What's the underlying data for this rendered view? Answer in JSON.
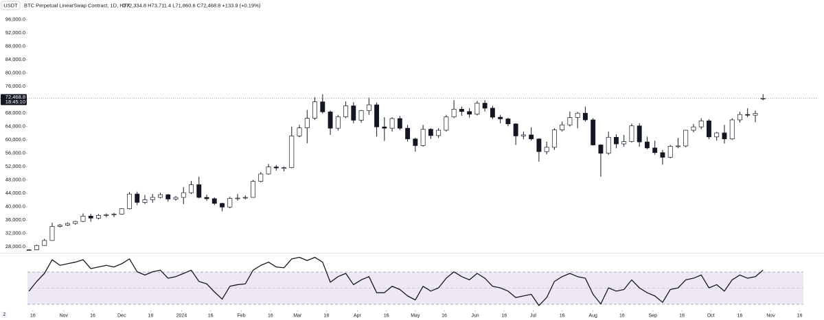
{
  "chart_data": {
    "type": "candlestick",
    "currency": "USDT",
    "title": "BTC Perpetual LinearSwap Contract, 1D, HTX",
    "legend_values": "O72,334.8 H73,711.4 L71,860.6 C72,468.8 +133.9 (+0.19%)",
    "x": [
      -2,
      2,
      6,
      10,
      14,
      18,
      22,
      26,
      30,
      34,
      38,
      42,
      46,
      50,
      54,
      58,
      62,
      66,
      70,
      74,
      78,
      82,
      86,
      90,
      94,
      98,
      102,
      106,
      110,
      114,
      118,
      122,
      126,
      130,
      134,
      138,
      142,
      146,
      150,
      154,
      158,
      162,
      166,
      170,
      174,
      178,
      182,
      186,
      190,
      194,
      198,
      202,
      206,
      210,
      214,
      218,
      222,
      226,
      230,
      234,
      238,
      242,
      246,
      250,
      254,
      258,
      262,
      266,
      270,
      274,
      278,
      282,
      286,
      290,
      294,
      298,
      302,
      306,
      310,
      314,
      318,
      322,
      326,
      330,
      334,
      338,
      342,
      346,
      350,
      354,
      358,
      362,
      366,
      370,
      374,
      378
    ],
    "open": [
      26900,
      27100,
      28400,
      29900,
      34100,
      34500,
      35000,
      35600,
      37200,
      36600,
      37400,
      37600,
      37800,
      39400,
      43800,
      41300,
      42100,
      42800,
      43600,
      42300,
      42800,
      44200,
      46600,
      42800,
      42400,
      41000,
      39900,
      42500,
      42600,
      42800,
      47600,
      49800,
      51900,
      51600,
      51700,
      61200,
      63600,
      66500,
      71400,
      68400,
      63500,
      66900,
      70200,
      65900,
      68800,
      70500,
      63900,
      63500,
      66400,
      63500,
      60300,
      58300,
      63200,
      61300,
      62900,
      66900,
      69200,
      68500,
      67700,
      71000,
      69500,
      66800,
      66300,
      64800,
      61200,
      61500,
      60300,
      56500,
      57800,
      63000,
      64500,
      66700,
      68000,
      66000,
      58500,
      56000,
      60800,
      58800,
      59500,
      64200,
      59400,
      57600,
      56200,
      54800,
      58100,
      58200,
      62900,
      63900,
      65700,
      60900,
      62100,
      60300,
      66000,
      67600,
      67400,
      72334.8
    ],
    "high": [
      27300,
      28600,
      30400,
      35200,
      34800,
      35300,
      35800,
      38000,
      37900,
      37800,
      38000,
      38200,
      39500,
      44400,
      44500,
      43500,
      43800,
      44200,
      43800,
      43200,
      45900,
      47700,
      49000,
      43600,
      42800,
      41200,
      43000,
      43800,
      43400,
      48000,
      50400,
      52800,
      52500,
      52000,
      64000,
      64500,
      69000,
      72800,
      73700,
      68800,
      67500,
      71500,
      71300,
      69000,
      72700,
      71200,
      66800,
      66800,
      67200,
      64500,
      60700,
      64500,
      63500,
      63500,
      67500,
      71900,
      70000,
      69500,
      71700,
      71900,
      70200,
      67500,
      66600,
      65000,
      62500,
      63800,
      60500,
      59500,
      63500,
      65500,
      68500,
      68400,
      70000,
      66500,
      58700,
      62500,
      61700,
      61500,
      64900,
      65000,
      61000,
      59800,
      57000,
      58500,
      60600,
      63000,
      64800,
      66500,
      66200,
      62400,
      64500,
      66500,
      68400,
      69500,
      68800,
      73711.4
    ],
    "low": [
      26800,
      27000,
      28300,
      29800,
      33800,
      34200,
      34600,
      35400,
      35500,
      36200,
      36800,
      36900,
      37600,
      39200,
      40500,
      40800,
      41200,
      42500,
      41500,
      41800,
      40800,
      43800,
      42500,
      41700,
      40500,
      38600,
      39500,
      41800,
      42200,
      42700,
      47300,
      49600,
      50800,
      50600,
      51500,
      60800,
      59000,
      66000,
      67900,
      61500,
      62800,
      66500,
      65000,
      65100,
      67500,
      61000,
      59700,
      62500,
      63000,
      59500,
      56500,
      58000,
      60300,
      60600,
      62500,
      66500,
      67200,
      66700,
      67300,
      68500,
      66200,
      65000,
      64100,
      58500,
      60200,
      59800,
      53500,
      55700,
      57000,
      62500,
      64000,
      63500,
      65500,
      58300,
      49000,
      55500,
      57500,
      58000,
      59200,
      58000,
      57200,
      55600,
      52600,
      54500,
      57500,
      57800,
      62300,
      63200,
      60200,
      59800,
      58900,
      60000,
      65200,
      66800,
      65300,
      71860.6
    ],
    "close": [
      27100,
      28400,
      29900,
      34100,
      34500,
      35000,
      35600,
      37200,
      36600,
      37400,
      37600,
      37800,
      39400,
      43800,
      41300,
      42100,
      42800,
      43600,
      42300,
      42800,
      44200,
      46600,
      42800,
      42400,
      41000,
      39900,
      42500,
      42600,
      42800,
      47600,
      49800,
      51900,
      51600,
      51700,
      61200,
      63600,
      66500,
      71400,
      68400,
      63500,
      66900,
      70200,
      65900,
      68800,
      70500,
      63900,
      63500,
      66400,
      63500,
      60300,
      58300,
      63200,
      61300,
      62900,
      66900,
      69200,
      68500,
      67700,
      71000,
      69500,
      66800,
      66300,
      64800,
      61200,
      61500,
      60300,
      56500,
      57800,
      63000,
      64500,
      66700,
      68000,
      66000,
      58500,
      56000,
      60800,
      58800,
      59500,
      64200,
      59400,
      57600,
      56200,
      54800,
      58100,
      58200,
      62900,
      63900,
      65700,
      60900,
      62100,
      60300,
      66000,
      67600,
      67400,
      67900,
      72468.8
    ],
    "xlim": [
      -17,
      406
    ],
    "xticks": [
      {
        "value": 0,
        "label": "16"
      },
      {
        "value": 16,
        "label": "Nov"
      },
      {
        "value": 31,
        "label": "16"
      },
      {
        "value": 46,
        "label": "Dec"
      },
      {
        "value": 61,
        "label": "16"
      },
      {
        "value": 77,
        "label": "2024"
      },
      {
        "value": 92,
        "label": "16"
      },
      {
        "value": 108,
        "label": "Feb"
      },
      {
        "value": 123,
        "label": "16"
      },
      {
        "value": 137,
        "label": "Mar"
      },
      {
        "value": 152,
        "label": "16"
      },
      {
        "value": 168,
        "label": "Apr"
      },
      {
        "value": 183,
        "label": "16"
      },
      {
        "value": 198,
        "label": "May"
      },
      {
        "value": 213,
        "label": "16"
      },
      {
        "value": 229,
        "label": "Jun"
      },
      {
        "value": 244,
        "label": "16"
      },
      {
        "value": 259,
        "label": "Jul"
      },
      {
        "value": 274,
        "label": "16"
      },
      {
        "value": 290,
        "label": "Aug"
      },
      {
        "value": 305,
        "label": "16"
      },
      {
        "value": 321,
        "label": "Sep"
      },
      {
        "value": 336,
        "label": "16"
      },
      {
        "value": 351,
        "label": "Oct"
      },
      {
        "value": 366,
        "label": "16"
      },
      {
        "value": 382,
        "label": "Nov"
      },
      {
        "value": 397,
        "label": "16"
      }
    ],
    "ylim": [
      26400,
      98400
    ],
    "yticks": [
      {
        "value": 28000,
        "label": "28,000.0"
      },
      {
        "value": 32000,
        "label": "32,000.0"
      },
      {
        "value": 36000,
        "label": "36,000.0"
      },
      {
        "value": 40000,
        "label": "40,000.0"
      },
      {
        "value": 44000,
        "label": "44,000.0"
      },
      {
        "value": 48000,
        "label": "48,000.0"
      },
      {
        "value": 52000,
        "label": "52,000.0"
      },
      {
        "value": 56000,
        "label": "56,000.0"
      },
      {
        "value": 60000,
        "label": "60,000.0"
      },
      {
        "value": 64000,
        "label": "64,000.0"
      },
      {
        "value": 68000,
        "label": "68,000.0"
      },
      {
        "value": 72000,
        "label": "72,000.0"
      },
      {
        "value": 76000,
        "label": "76,000.0"
      },
      {
        "value": 80000,
        "label": "80,000.0"
      },
      {
        "value": 84000,
        "label": "84,000.0"
      },
      {
        "value": 88000,
        "label": "88,000.0"
      },
      {
        "value": 92000,
        "label": "92,000.0"
      },
      {
        "value": 96000,
        "label": "96,000.0"
      }
    ],
    "price_line": {
      "value": 72468.8,
      "label": "72,468.8"
    },
    "countdown": "18:45:10",
    "up_color": "#ffffff",
    "down_color": "#131722",
    "indicator": {
      "type": "line",
      "label": "Z",
      "color": "#131722",
      "ylim": [
        22,
        91
      ],
      "values": [
        46,
        58,
        68,
        85,
        78,
        80,
        82,
        85,
        74,
        76,
        78,
        76,
        80,
        86,
        70,
        66,
        70,
        72,
        62,
        64,
        68,
        72,
        58,
        55,
        45,
        36,
        52,
        54,
        55,
        72,
        78,
        82,
        76,
        75,
        86,
        88,
        84,
        88,
        82,
        57,
        64,
        68,
        54,
        60,
        64,
        44,
        44,
        52,
        48,
        40,
        35,
        52,
        46,
        50,
        62,
        70,
        64,
        60,
        68,
        62,
        52,
        50,
        46,
        38,
        40,
        42,
        28,
        38,
        58,
        64,
        68,
        64,
        62,
        42,
        30,
        50,
        46,
        48,
        60,
        50,
        44,
        40,
        32,
        48,
        50,
        60,
        62,
        66,
        50,
        54,
        46,
        60,
        66,
        62,
        64,
        72
      ]
    }
  }
}
